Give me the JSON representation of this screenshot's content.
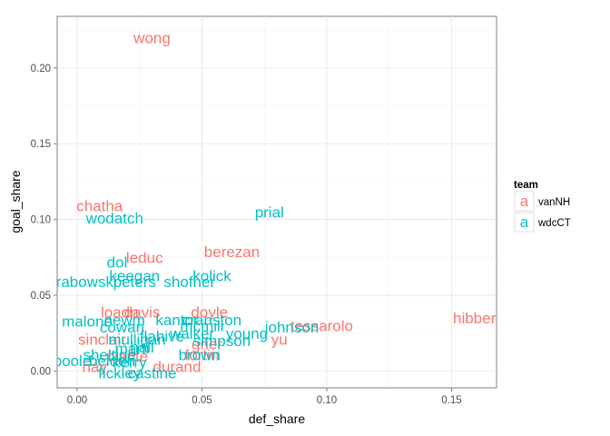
{
  "chart_data": {
    "type": "scatter",
    "xlabel": "def_share",
    "ylabel": "goal_share",
    "xlim": [
      -0.008,
      0.168
    ],
    "ylim": [
      -0.011,
      0.234
    ],
    "x_ticks": [
      0.0,
      0.05,
      0.1,
      0.15
    ],
    "x_tick_labels": [
      "0.00",
      "0.05",
      "0.10",
      "0.15"
    ],
    "y_ticks": [
      0.0,
      0.05,
      0.1,
      0.15,
      0.2
    ],
    "y_tick_labels": [
      "0.00",
      "0.05",
      "0.10",
      "0.15",
      "0.20"
    ],
    "grid": true,
    "legend": {
      "title": "team",
      "placement": "right",
      "key_glyph": "a",
      "entries": [
        {
          "name": "vanNH",
          "color": "#F8766D"
        },
        {
          "name": "wdcCT",
          "color": "#00BFC4"
        }
      ]
    },
    "series": [
      {
        "name": "vanNH",
        "color": "#F8766D",
        "points": [
          {
            "label": "wong",
            "x": 0.03,
            "y": 0.22
          },
          {
            "label": "chatha",
            "x": 0.009,
            "y": 0.109
          },
          {
            "label": "leduc",
            "x": 0.027,
            "y": 0.075
          },
          {
            "label": "berezan",
            "x": 0.062,
            "y": 0.079
          },
          {
            "label": "davis",
            "x": 0.026,
            "y": 0.039
          },
          {
            "label": "loadn",
            "x": 0.017,
            "y": 0.039
          },
          {
            "label": "doyle",
            "x": 0.053,
            "y": 0.039
          },
          {
            "label": "tessarolo",
            "x": 0.098,
            "y": 0.03
          },
          {
            "label": "hibbert",
            "x": 0.16,
            "y": 0.035
          },
          {
            "label": "yu",
            "x": 0.081,
            "y": 0.021
          },
          {
            "label": "sinclair",
            "x": 0.01,
            "y": 0.021
          },
          {
            "label": "grier",
            "x": 0.052,
            "y": 0.018
          },
          {
            "label": "nay",
            "x": 0.007,
            "y": 0.003
          },
          {
            "label": "plante",
            "x": 0.02,
            "y": 0.01
          },
          {
            "label": "fortin",
            "x": 0.05,
            "y": 0.011
          },
          {
            "label": "durand",
            "x": 0.04,
            "y": 0.003
          }
        ]
      },
      {
        "name": "wdcCT",
        "color": "#00BFC4",
        "points": [
          {
            "label": "wodatch",
            "x": 0.015,
            "y": 0.101
          },
          {
            "label": "prial",
            "x": 0.077,
            "y": 0.105
          },
          {
            "label": "dol",
            "x": 0.016,
            "y": 0.072
          },
          {
            "label": "keegan",
            "x": 0.023,
            "y": 0.063
          },
          {
            "label": "kolick",
            "x": 0.054,
            "y": 0.063
          },
          {
            "label": "grabowski",
            "x": 0.002,
            "y": 0.059
          },
          {
            "label": "peters",
            "x": 0.023,
            "y": 0.059
          },
          {
            "label": "shofner",
            "x": 0.045,
            "y": 0.059
          },
          {
            "label": "malone",
            "x": 0.004,
            "y": 0.033
          },
          {
            "label": "newm",
            "x": 0.019,
            "y": 0.034
          },
          {
            "label": "kantor",
            "x": 0.04,
            "y": 0.034
          },
          {
            "label": "cranston",
            "x": 0.054,
            "y": 0.034
          },
          {
            "label": "cowan",
            "x": 0.018,
            "y": 0.029
          },
          {
            "label": "johnson",
            "x": 0.086,
            "y": 0.029
          },
          {
            "label": "mcmill",
            "x": 0.05,
            "y": 0.03
          },
          {
            "label": "young",
            "x": 0.068,
            "y": 0.025
          },
          {
            "label": "simpson",
            "x": 0.058,
            "y": 0.02
          },
          {
            "label": "flahive",
            "x": 0.034,
            "y": 0.023
          },
          {
            "label": "mulligan",
            "x": 0.024,
            "y": 0.021
          },
          {
            "label": "walker",
            "x": 0.046,
            "y": 0.025
          },
          {
            "label": "hall",
            "x": 0.026,
            "y": 0.016
          },
          {
            "label": "marti",
            "x": 0.022,
            "y": 0.015
          },
          {
            "label": "sheltine",
            "x": 0.013,
            "y": 0.011
          },
          {
            "label": "brown",
            "x": 0.049,
            "y": 0.011
          },
          {
            "label": "poole",
            "x": -0.002,
            "y": 0.007
          },
          {
            "label": "belden",
            "x": 0.014,
            "y": 0.007
          },
          {
            "label": "kerry",
            "x": 0.021,
            "y": 0.006
          },
          {
            "label": "fickley",
            "x": 0.017,
            "y": -0.001
          },
          {
            "label": "castine",
            "x": 0.03,
            "y": -0.001
          }
        ]
      }
    ]
  }
}
